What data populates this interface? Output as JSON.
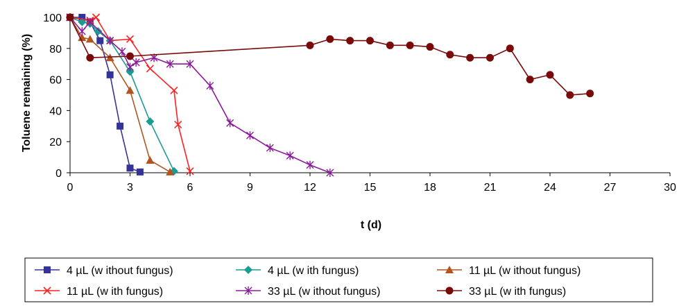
{
  "chart_data": {
    "type": "line",
    "title": "",
    "xlabel": "t (d)",
    "ylabel": "Toluene remaining (%)",
    "xlim": [
      0,
      30
    ],
    "ylim": [
      0,
      100
    ],
    "xticks": [
      0,
      3,
      6,
      9,
      12,
      15,
      18,
      21,
      24,
      27,
      30
    ],
    "yticks": [
      0,
      20,
      40,
      60,
      80,
      100
    ],
    "grid": false,
    "legend_position": "bottom",
    "series": [
      {
        "name": "4 µL (w ithout fungus)",
        "color": "#333399",
        "marker": "square",
        "x": [
          0,
          0.6,
          1.0,
          1.5,
          2.0,
          2.5,
          3.0,
          3.5
        ],
        "y": [
          100,
          100,
          97,
          85,
          63,
          30,
          3,
          0.5
        ]
      },
      {
        "name": "4 µL (w ith fungus)",
        "color": "#1a9b93",
        "marker": "diamond",
        "x": [
          0,
          0.6,
          1.0,
          1.4,
          2.0,
          3.0,
          4.0,
          5.2
        ],
        "y": [
          100,
          97,
          96,
          91,
          85,
          65,
          33,
          1
        ]
      },
      {
        "name": "11 µL (w ithout fungus)",
        "color": "#b2541f",
        "marker": "triangle",
        "x": [
          0,
          0.6,
          1.0,
          2.0,
          3.0,
          4.0,
          5.0
        ],
        "y": [
          100,
          87,
          86,
          74,
          53,
          8,
          0.5
        ]
      },
      {
        "name": "11 µL (w ith fungus)",
        "color": "#ff2020",
        "marker": "x",
        "x": [
          0,
          1.0,
          1.3,
          2.0,
          3.0,
          4.0,
          5.2,
          5.4,
          6.0
        ],
        "y": [
          100,
          98,
          100,
          85,
          86,
          67,
          53,
          31,
          1
        ]
      },
      {
        "name": "33 µL (w ithout fungus)",
        "color": "#8b1a9b",
        "marker": "star",
        "x": [
          0,
          0.6,
          1.0,
          2.0,
          2.6,
          3.0,
          3.3,
          4.2,
          5.0,
          6.0,
          7.0,
          8.0,
          9.0,
          10.0,
          11.0,
          12.0,
          13.0
        ],
        "y": [
          100,
          91,
          97,
          85,
          78,
          68,
          71,
          74,
          70,
          70,
          56,
          32,
          24,
          16,
          11,
          5,
          0
        ]
      },
      {
        "name": "33 µL (w ith fungus)",
        "color": "#7a0a0a",
        "marker": "circle",
        "x": [
          0,
          1.0,
          3.0,
          12.0,
          13.0,
          14.0,
          15.0,
          16.0,
          17.0,
          18.0,
          19.0,
          20.0,
          21.0,
          22.0,
          23.0,
          24.0,
          25.0,
          26.0
        ],
        "y": [
          100,
          74,
          75,
          82,
          86,
          85,
          85,
          82,
          82,
          81,
          76,
          74,
          74,
          80,
          60,
          63,
          50,
          51
        ]
      }
    ]
  }
}
